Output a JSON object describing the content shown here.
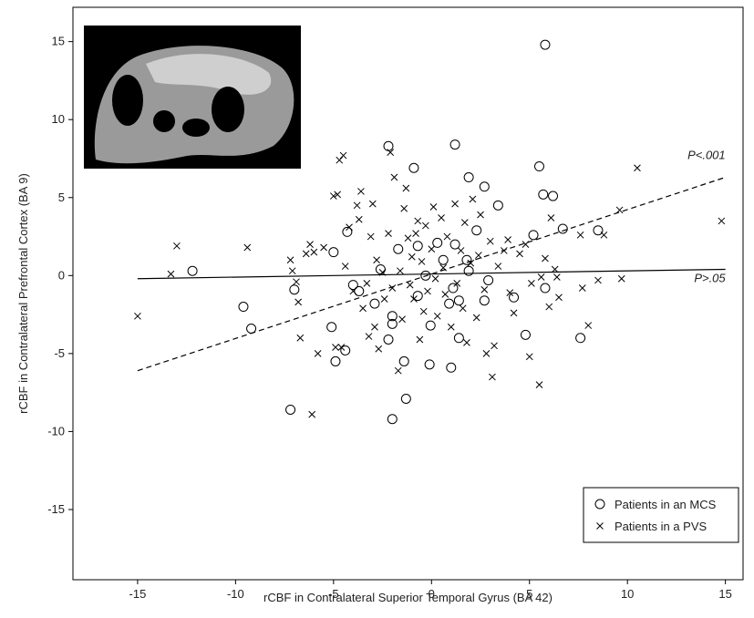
{
  "chart_data": {
    "type": "scatter",
    "x_label": "rCBF in Contralateral Superior Temporal Gyrus (BA 42)",
    "y_label": "rCBF in Contralateral Prefrontal Cortex (BA 9)",
    "xlim": [
      -18.3,
      15.9
    ],
    "ylim": [
      -19.5,
      17.2
    ],
    "xticks": [
      -15,
      -10,
      -5,
      0,
      5,
      10,
      15
    ],
    "yticks": [
      -15,
      -10,
      -5,
      0,
      5,
      10,
      15
    ],
    "legend": "lower right",
    "series": [
      {
        "name": "Patients in an MCS",
        "marker": "circle",
        "color": "#000000",
        "x": [
          5.8,
          -12.2,
          1.2,
          -2.2,
          -0.9,
          5.5,
          1.9,
          2.7,
          5.7,
          6.2,
          3.4,
          5.2,
          6.7,
          8.5,
          2.3,
          -4.3,
          -1.7,
          -0.7,
          0.3,
          1.2,
          -5.0,
          -2.6,
          1.8,
          1.9,
          -0.3,
          0.6,
          2.9,
          -4.0,
          -3.7,
          -7.0,
          1.1,
          5.8,
          -0.7,
          4.2,
          0.9,
          1.4,
          -2.9,
          2.7,
          -9.6,
          -2.0,
          -2.0,
          -0.05,
          -9.2,
          -5.1,
          1.4,
          -2.2,
          4.8,
          7.6,
          -4.4,
          -4.9,
          -1.4,
          -0.1,
          1.0,
          -1.3,
          -7.2,
          -2.0
        ],
        "values": [
          14.8,
          0.3,
          8.4,
          8.3,
          6.9,
          7.0,
          6.3,
          5.7,
          5.2,
          5.1,
          4.5,
          2.6,
          3.0,
          2.9,
          2.9,
          2.8,
          1.7,
          1.9,
          2.1,
          2.0,
          1.5,
          0.4,
          1.0,
          0.3,
          0,
          1.0,
          -0.3,
          -0.6,
          -1.0,
          -0.9,
          -0.8,
          -0.8,
          -1.3,
          -1.4,
          -1.8,
          -1.6,
          -1.8,
          -1.6,
          -2.0,
          -2.6,
          -3.1,
          -3.2,
          -3.4,
          -3.3,
          -4.0,
          -4.1,
          -3.8,
          -4.0,
          -4.8,
          -5.5,
          -5.5,
          -5.7,
          -5.9,
          -7.9,
          -8.6,
          -9.2
        ]
      },
      {
        "name": "Patients in a PVS",
        "marker": "x",
        "color": "#000000",
        "x": [
          -15,
          -13,
          -13.3,
          -9.4,
          -7.2,
          -7.1,
          -6.9,
          -6.8,
          -6.7,
          -6.4,
          -6.2,
          -6.0,
          -5.8,
          -5.5,
          -6.1,
          -5.0,
          -4.8,
          -4.7,
          -4.5,
          -4.9,
          -4.6,
          -4.4,
          -4.2,
          -4.0,
          -3.8,
          -3.7,
          -3.6,
          -3.5,
          -3.3,
          -3.2,
          -3.1,
          -3.0,
          -2.9,
          -2.8,
          -2.7,
          -2.5,
          -2.4,
          -2.2,
          -2.1,
          -2.0,
          -1.9,
          -1.7,
          -1.6,
          -1.5,
          -1.4,
          -1.3,
          -1.2,
          -1.1,
          -1.0,
          -0.9,
          -0.8,
          -0.7,
          -0.6,
          -0.5,
          -0.4,
          -0.3,
          -0.2,
          0.0,
          0.1,
          0.2,
          0.3,
          0.5,
          0.6,
          0.7,
          0.8,
          1.0,
          1.2,
          1.3,
          1.5,
          1.6,
          1.7,
          1.8,
          2.0,
          2.1,
          2.3,
          2.4,
          2.5,
          2.7,
          2.8,
          3.0,
          3.1,
          3.2,
          3.4,
          3.7,
          3.9,
          4.0,
          4.2,
          4.5,
          4.8,
          5.0,
          5.1,
          5.5,
          5.6,
          5.8,
          6.0,
          6.3,
          6.5,
          7.7,
          7.6,
          8.0,
          8.5,
          9.6,
          10.5,
          14.8,
          8.8,
          9.7,
          6.1,
          6.4
        ],
        "values": [
          -2.6,
          1.9,
          0.1,
          1.8,
          1.0,
          0.3,
          -0.4,
          -1.7,
          -4.0,
          1.4,
          2.0,
          1.5,
          -5.0,
          1.8,
          -8.9,
          5.1,
          5.2,
          7.4,
          7.7,
          -4.6,
          -4.6,
          0.6,
          3.1,
          -1.0,
          4.5,
          3.6,
          5.4,
          -2.1,
          -0.5,
          -3.9,
          2.5,
          4.6,
          -3.3,
          1.0,
          -4.7,
          0.2,
          -1.5,
          2.7,
          7.9,
          -0.8,
          6.3,
          -6.1,
          0.3,
          -2.8,
          4.3,
          5.6,
          2.4,
          -0.6,
          1.2,
          -1.5,
          2.7,
          3.5,
          -4.1,
          0.9,
          -2.3,
          3.2,
          -1.0,
          1.7,
          4.4,
          -0.2,
          -2.6,
          3.7,
          0.5,
          -1.2,
          2.5,
          -3.3,
          4.6,
          -0.5,
          1.6,
          -2.1,
          3.4,
          -4.3,
          0.8,
          4.9,
          -2.7,
          1.3,
          3.9,
          -0.9,
          -5.0,
          2.2,
          -6.5,
          -4.5,
          0.6,
          1.6,
          2.3,
          -1.1,
          -2.4,
          1.4,
          2.0,
          -5.2,
          -0.5,
          -7.0,
          -0.1,
          1.1,
          -2.0,
          0.4,
          -1.4,
          -0.8,
          2.6,
          -3.2,
          -0.3,
          4.2,
          6.9,
          3.5,
          2.6,
          -0.2,
          3.7,
          -0.1
        ]
      }
    ],
    "fit_lines": [
      {
        "label": "P<.001",
        "style": "dashed",
        "x": [
          -15,
          15
        ],
        "values": [
          -6.1,
          6.3
        ]
      },
      {
        "label": "P>.05",
        "style": "solid",
        "x": [
          -15,
          15
        ],
        "values": [
          -0.2,
          0.4
        ]
      }
    ]
  }
}
